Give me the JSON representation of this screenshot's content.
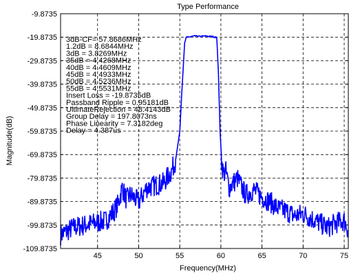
{
  "chart_data": {
    "type": "line",
    "title": "Type Performance",
    "xlabel": "Frequency(MHz)",
    "ylabel": "Magnitude(dB)",
    "xlim": [
      40.5,
      75.5
    ],
    "ylim": [
      -109.8735,
      -9.8735
    ],
    "x_ticks": [
      45,
      50,
      55,
      60,
      65,
      70,
      75
    ],
    "x_tick_labels": [
      "45",
      "50",
      "55",
      "60",
      "65",
      "70",
      "75"
    ],
    "y_ticks": [
      -9.8735,
      -19.8735,
      -29.8735,
      -39.8735,
      -49.8735,
      -59.8735,
      -69.8735,
      -79.8735,
      -89.8735,
      -99.8735,
      -109.8735
    ],
    "y_tick_labels": [
      "-9.8735",
      "-19.8735",
      "-29.8735",
      "-39.8735",
      "-49.8735",
      "-59.8735",
      "-69.8735",
      "-79.8735",
      "-89.8735",
      "-99.8735",
      "-109.8735"
    ],
    "grid": true,
    "line_color": "#0000ff",
    "annotations": [
      "3dB-CF= 57.8686MHz",
      "1.2dB = 8.6844MHz",
      "3dB = 3.8269MHz",
      "35dB = 4.4268MHz",
      "40dB = 4.4609MHz",
      "45dB = 4.4933MHz",
      "50dB = 4.5236MHz",
      "55dB = 4.5531MHz",
      "Insert Loss = -19.8735dB",
      "Passband Ripple = 0.95181dB",
      "UltimateRejection = 48.4143dB",
      "Group Delay = 197.8073ns",
      "Phase Linearity = 7.3182deg",
      "Delay = 4.387us"
    ],
    "series": [
      {
        "x": [
          40.5,
          42,
          44,
          46,
          47,
          47.5,
          48,
          48.5,
          49,
          50,
          51,
          52,
          53,
          54,
          54.5,
          55,
          55.3,
          55.6,
          55.8,
          56,
          56.5,
          57,
          57.5,
          58,
          58.5,
          59,
          59.5,
          59.7,
          59.9,
          60.1,
          60.3,
          60.6,
          61,
          61.5,
          62,
          63,
          64,
          65,
          66,
          67,
          68,
          69,
          70,
          71,
          72,
          73,
          74,
          75,
          75.5
        ],
        "y": [
          -104,
          -101,
          -99.5,
          -98,
          -94,
          -91,
          -84,
          -89,
          -87,
          -90,
          -84,
          -83,
          -82,
          -77,
          -72,
          -60,
          -40,
          -22,
          -19.9,
          -19.9,
          -19.5,
          -19.4,
          -19.6,
          -19.4,
          -19.5,
          -19.6,
          -20,
          -35,
          -60,
          -73,
          -78,
          -77,
          -84,
          -82,
          -80,
          -87,
          -85,
          -88,
          -90,
          -93,
          -94,
          -96,
          -95,
          -97,
          -99,
          -101,
          -99,
          -98,
          -102
        ]
      }
    ]
  }
}
